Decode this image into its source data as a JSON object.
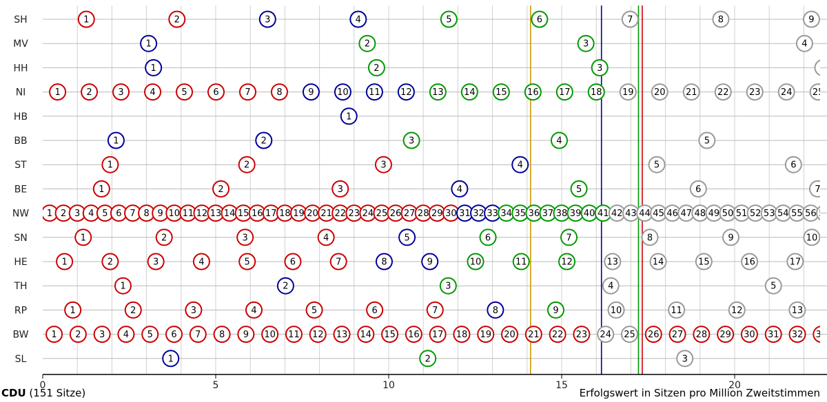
{
  "chart_data": {
    "type": "scatter",
    "title": "",
    "xlabel": "Erfolgswert in Sitzen pro Million Zweitstimmen",
    "ylabel": "",
    "xlim": [
      0,
      22.5
    ],
    "x_ticks": [
      0,
      5,
      10,
      15,
      20
    ],
    "grid": true,
    "rows": [
      "SH",
      "MV",
      "HH",
      "NI",
      "HB",
      "BB",
      "ST",
      "BE",
      "NW",
      "SN",
      "HE",
      "TH",
      "RP",
      "BW",
      "SL"
    ],
    "colors": {
      "red": "#cc0000",
      "blue": "#000099",
      "green": "#009900",
      "gray": "#999999"
    },
    "vertical_lines": [
      {
        "x": 14.1,
        "color": "#cc9900"
      },
      {
        "x": 16.15,
        "color": "#000099"
      },
      {
        "x": 17.22,
        "color": "#009900"
      },
      {
        "x": 17.33,
        "color": "#cc0000"
      }
    ],
    "series": [
      {
        "row": "SH",
        "first_x": 1.26,
        "step": 2.62,
        "count": 9,
        "blue": [
          3,
          4
        ],
        "green": [
          5,
          6
        ]
      },
      {
        "row": "MV",
        "first_x": 3.06,
        "step": 6.32,
        "count": 4,
        "blue": [
          1
        ],
        "green": [
          2,
          3
        ]
      },
      {
        "row": "HH",
        "first_x": 3.2,
        "step": 6.45,
        "count": 4,
        "blue": [
          1
        ],
        "green": [
          2,
          3
        ]
      },
      {
        "row": "NI",
        "first_x": 0.43,
        "step": 0.916,
        "count": 25,
        "blue": [
          9,
          10,
          11,
          12
        ],
        "green": [
          13,
          14,
          15,
          16,
          17,
          18
        ]
      },
      {
        "row": "HB",
        "first_x": 8.85,
        "step": 0,
        "count": 1,
        "blue": [
          1
        ],
        "green": []
      },
      {
        "row": "BB",
        "first_x": 2.12,
        "step": 4.27,
        "count": 5,
        "blue": [
          1,
          2
        ],
        "green": [
          3,
          4
        ]
      },
      {
        "row": "ST",
        "first_x": 1.95,
        "step": 3.95,
        "count": 6,
        "blue": [
          4
        ],
        "green": []
      },
      {
        "row": "BE",
        "first_x": 1.7,
        "step": 3.45,
        "count": 7,
        "blue": [
          4
        ],
        "green": [
          5
        ]
      },
      {
        "row": "NW",
        "first_x": 0.2,
        "step": 0.4,
        "count": 58,
        "blue": [
          31,
          32,
          33
        ],
        "green": [
          34,
          35,
          36,
          37,
          38,
          39,
          40,
          41
        ]
      },
      {
        "row": "SN",
        "first_x": 1.17,
        "step": 2.34,
        "count": 10,
        "blue": [
          5
        ],
        "green": [
          6,
          7
        ]
      },
      {
        "row": "HE",
        "first_x": 0.63,
        "step": 1.32,
        "count": 17,
        "blue": [
          8,
          9
        ],
        "green": [
          10,
          11,
          12
        ]
      },
      {
        "row": "TH",
        "first_x": 2.32,
        "step": 4.7,
        "count": 5,
        "blue": [
          2
        ],
        "green": [
          3
        ]
      },
      {
        "row": "RP",
        "first_x": 0.87,
        "step": 1.745,
        "count": 13,
        "blue": [
          8
        ],
        "green": [
          9
        ]
      },
      {
        "row": "BW",
        "first_x": 0.33,
        "step": 0.693,
        "count": 33,
        "blue": [],
        "green": []
      },
      {
        "row": "SL",
        "first_x": 3.7,
        "step": 7.43,
        "count": 3,
        "blue": [
          1
        ],
        "green": [
          2
        ]
      }
    ]
  },
  "footer": {
    "party": "CDU",
    "seats": "(151 Sitze)",
    "xlabel": "Erfolgswert in Sitzen pro Million Zweitstimmen"
  }
}
